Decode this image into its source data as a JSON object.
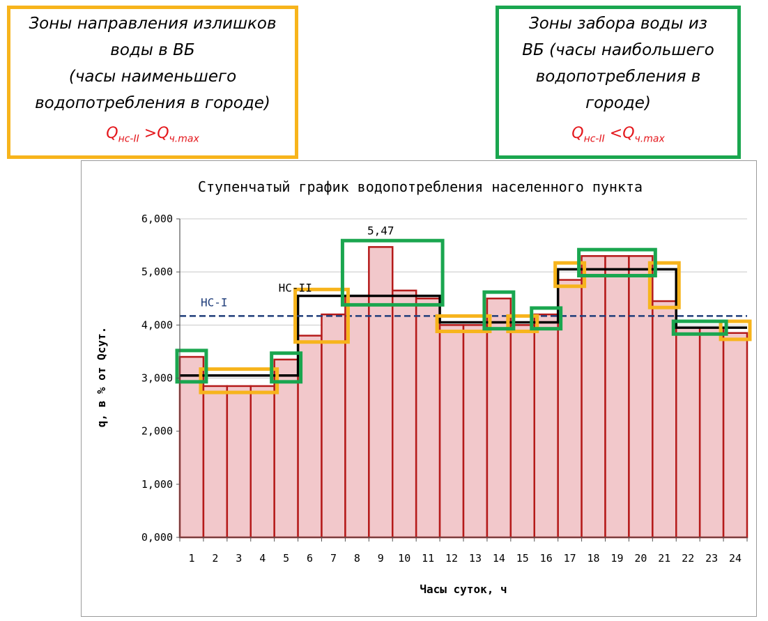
{
  "notes": {
    "left": {
      "lines": [
        "Зоны направления излишков",
        "воды в ВБ",
        "(часы наименьшего",
        "водопотребления в городе)"
      ],
      "formula": {
        "q1": "Q",
        "s1": "нс-II",
        "op": " >",
        "q2": "Q",
        "s2": "ч.max"
      },
      "border_color": "#f7b41c"
    },
    "right": {
      "lines": [
        "Зоны забора воды из",
        "ВБ (часы наибольшего",
        "водопотребления в",
        "городе)"
      ],
      "formula": {
        "q1": "Q",
        "s1": "нс-II",
        "op": " <",
        "q2": "Q",
        "s2": "ч.max"
      },
      "border_color": "#1aa64f"
    }
  },
  "chart_data": {
    "type": "bar",
    "title": "Ступенчатый график водопотребления населенного пункта",
    "xlabel": "Часы суток, ч",
    "ylabel": "q, в % от Qсут.",
    "categories": [
      "1",
      "2",
      "3",
      "4",
      "5",
      "6",
      "7",
      "8",
      "9",
      "10",
      "11",
      "12",
      "13",
      "14",
      "15",
      "16",
      "17",
      "18",
      "19",
      "20",
      "21",
      "22",
      "23",
      "24"
    ],
    "values": [
      3.4,
      2.85,
      2.85,
      2.85,
      3.35,
      3.8,
      4.2,
      4.55,
      5.47,
      4.65,
      4.5,
      4.0,
      4.0,
      4.5,
      4.0,
      4.2,
      4.85,
      5.3,
      5.3,
      5.3,
      4.45,
      3.95,
      3.95,
      3.85
    ],
    "ylim": [
      0,
      6
    ],
    "yticks": [
      "0,000",
      "1,000",
      "2,000",
      "3,000",
      "4,000",
      "5,000",
      "6,000"
    ],
    "grid": true,
    "bar_fill": "#f2c8cb",
    "bar_stroke": "#b51a1a",
    "pump_stage_2": {
      "label": "НС-II",
      "values": [
        3.05,
        3.05,
        3.05,
        3.05,
        3.05,
        4.55,
        4.55,
        4.55,
        4.55,
        4.55,
        4.55,
        4.05,
        4.05,
        4.05,
        4.05,
        4.05,
        5.05,
        5.05,
        5.05,
        5.05,
        5.05,
        3.95,
        3.95,
        3.95
      ],
      "color": "#000000"
    },
    "pump_stage_1": {
      "label": "НС-I",
      "value": 4.17,
      "color": "#1f3d7a"
    },
    "peak_label": "5,47",
    "surplus_zones": {
      "color": "#f7b41c",
      "zones": [
        [
          2,
          4
        ],
        [
          6,
          7
        ],
        [
          12,
          13
        ],
        [
          15,
          15
        ],
        [
          17,
          17
        ],
        [
          21,
          21
        ],
        [
          24,
          24
        ]
      ]
    },
    "intake_zones": {
      "color": "#1aa64f",
      "zones": [
        [
          1,
          1
        ],
        [
          5,
          5
        ],
        [
          8,
          11
        ],
        [
          14,
          14
        ],
        [
          16,
          16
        ],
        [
          18,
          20
        ],
        [
          22,
          23
        ]
      ]
    }
  }
}
